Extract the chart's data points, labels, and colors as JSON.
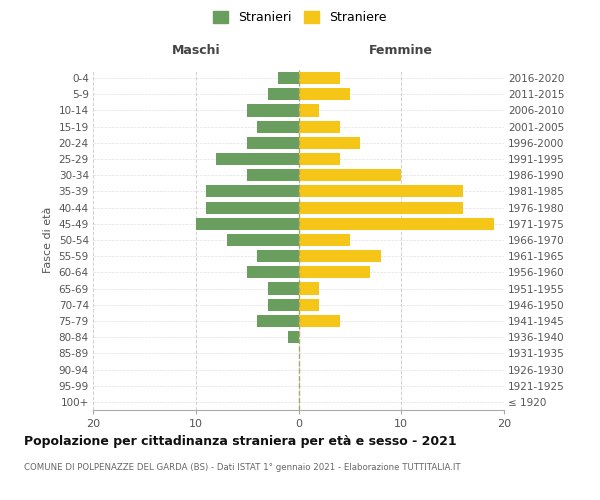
{
  "age_groups": [
    "100+",
    "95-99",
    "90-94",
    "85-89",
    "80-84",
    "75-79",
    "70-74",
    "65-69",
    "60-64",
    "55-59",
    "50-54",
    "45-49",
    "40-44",
    "35-39",
    "30-34",
    "25-29",
    "20-24",
    "15-19",
    "10-14",
    "5-9",
    "0-4"
  ],
  "birth_years": [
    "≤ 1920",
    "1921-1925",
    "1926-1930",
    "1931-1935",
    "1936-1940",
    "1941-1945",
    "1946-1950",
    "1951-1955",
    "1956-1960",
    "1961-1965",
    "1966-1970",
    "1971-1975",
    "1976-1980",
    "1981-1985",
    "1986-1990",
    "1991-1995",
    "1996-2000",
    "2001-2005",
    "2006-2010",
    "2011-2015",
    "2016-2020"
  ],
  "maschi": [
    0,
    0,
    0,
    0,
    1,
    4,
    3,
    3,
    5,
    4,
    7,
    10,
    9,
    9,
    5,
    8,
    5,
    4,
    5,
    3,
    2
  ],
  "femmine": [
    0,
    0,
    0,
    0,
    0,
    4,
    2,
    2,
    7,
    8,
    5,
    19,
    16,
    16,
    10,
    4,
    6,
    4,
    2,
    5,
    4
  ],
  "maschi_color": "#6a9e5e",
  "femmine_color": "#f5c518",
  "background_color": "#ffffff",
  "grid_color": "#cccccc",
  "title": "Popolazione per cittadinanza straniera per età e sesso - 2021",
  "subtitle": "COMUNE DI POLPENAZZE DEL GARDA (BS) - Dati ISTAT 1° gennaio 2021 - Elaborazione TUTTITALIA.IT",
  "ylabel_left": "Fasce di età",
  "legend_maschi": "Stranieri",
  "legend_femmine": "Straniere",
  "xlim": 20
}
